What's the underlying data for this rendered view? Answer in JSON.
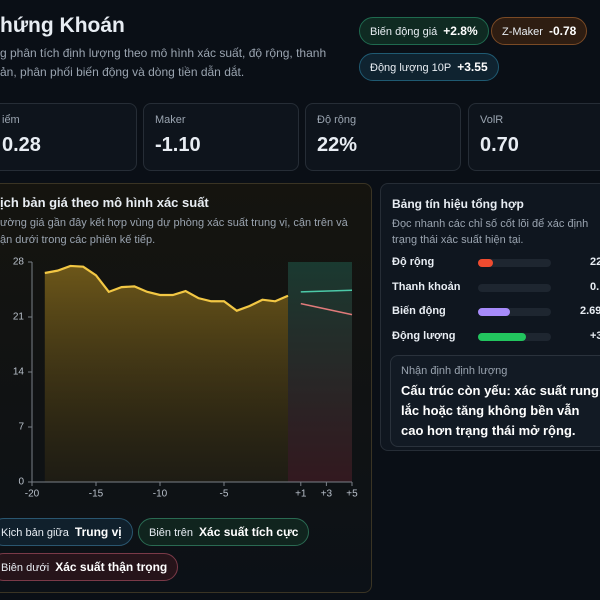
{
  "header": {
    "title": "hứng Khoán",
    "subtitle": [
      "g phân tích định lượng theo mô hình xác suất, độ rộng, thanh",
      "ản, phân phối biến động và dòng tiền dẫn dắt."
    ]
  },
  "badges": [
    {
      "label": "Biến động giá",
      "value": "+2.8%"
    },
    {
      "label": "Z-Maker",
      "value": "-0.78"
    },
    {
      "label": "Động lượng 10P",
      "value": "+3.55"
    }
  ],
  "stats": [
    {
      "label": "iểm",
      "value": "0.28"
    },
    {
      "label": "Maker",
      "value": "-1.10"
    },
    {
      "label": "Độ rộng",
      "value": "22%"
    },
    {
      "label": "VolR",
      "value": "0.70"
    }
  ],
  "panel": {
    "title": "ịch bản giá theo mô hình xác suất",
    "description": [
      "ường giá gần đây kết hợp vùng dự phòng xác suất trung vị, cận trên và",
      "ận dưới trong các phiên kế tiếp."
    ],
    "chart": {
      "type": "line",
      "xlim": [
        -20,
        5
      ],
      "xticks": [
        -20,
        -15,
        -10,
        -5,
        {
          "value": 1,
          "label": "+1"
        },
        {
          "value": 3,
          "label": "+3"
        },
        {
          "value": 5,
          "label": "+5"
        }
      ],
      "ylim": [
        0,
        28
      ],
      "yticks": [
        0,
        7,
        14,
        21,
        28
      ],
      "series": [
        {
          "color": "#f2c744",
          "x": [
            -19,
            -18,
            -17,
            -16,
            -15,
            -14,
            -13,
            -12,
            -11,
            -10,
            -9,
            -8,
            -7,
            -6,
            -5,
            -4,
            -3,
            -2,
            -1,
            0
          ],
          "values": [
            26.6,
            26.9,
            27.5,
            27.4,
            26.3,
            24.2,
            24.8,
            24.9,
            24.2,
            23.8,
            23.8,
            24.3,
            23.4,
            23.0,
            23.0,
            21.8,
            22.4,
            23.2,
            23.0,
            23.7
          ]
        },
        {
          "color": "#4cc9a8",
          "x": [
            1,
            5
          ],
          "values": [
            24.2,
            24.4
          ]
        },
        {
          "color": "#e07a7a",
          "x": [
            1,
            5
          ],
          "values": [
            22.7,
            21.3
          ]
        }
      ]
    },
    "legend": [
      {
        "label": "Kịch bản giữa",
        "value": "Trung vị"
      },
      {
        "label": "Biên trên",
        "value": "Xác suất tích cực"
      },
      {
        "label": "Biên dưới",
        "value": "Xác suất thận trọng"
      }
    ]
  },
  "signals": {
    "title": "Bảng tín hiệu tổng hợp",
    "description": [
      "Đọc nhanh các chỉ số cốt lõi để xác định",
      "trạng thái xác suất hiện tại."
    ],
    "rows": [
      {
        "label": "Độ rộng",
        "fill": 20,
        "color": "#ef4b2f",
        "value": "22"
      },
      {
        "label": "Thanh khoản",
        "fill": 0,
        "color": "#888",
        "value": "0."
      },
      {
        "label": "Biến động",
        "fill": 44,
        "color": "#a78bfa",
        "value": "2.69"
      },
      {
        "label": "Động lượng",
        "fill": 66,
        "color": "#22c55e",
        "value": "+3."
      }
    ],
    "note": {
      "label": "Nhận định định lượng",
      "text": "Cấu trúc còn yếu: xác suất rung lắc hoặc tăng không bền vẫn cao hơn trạng thái mở rộng."
    }
  }
}
